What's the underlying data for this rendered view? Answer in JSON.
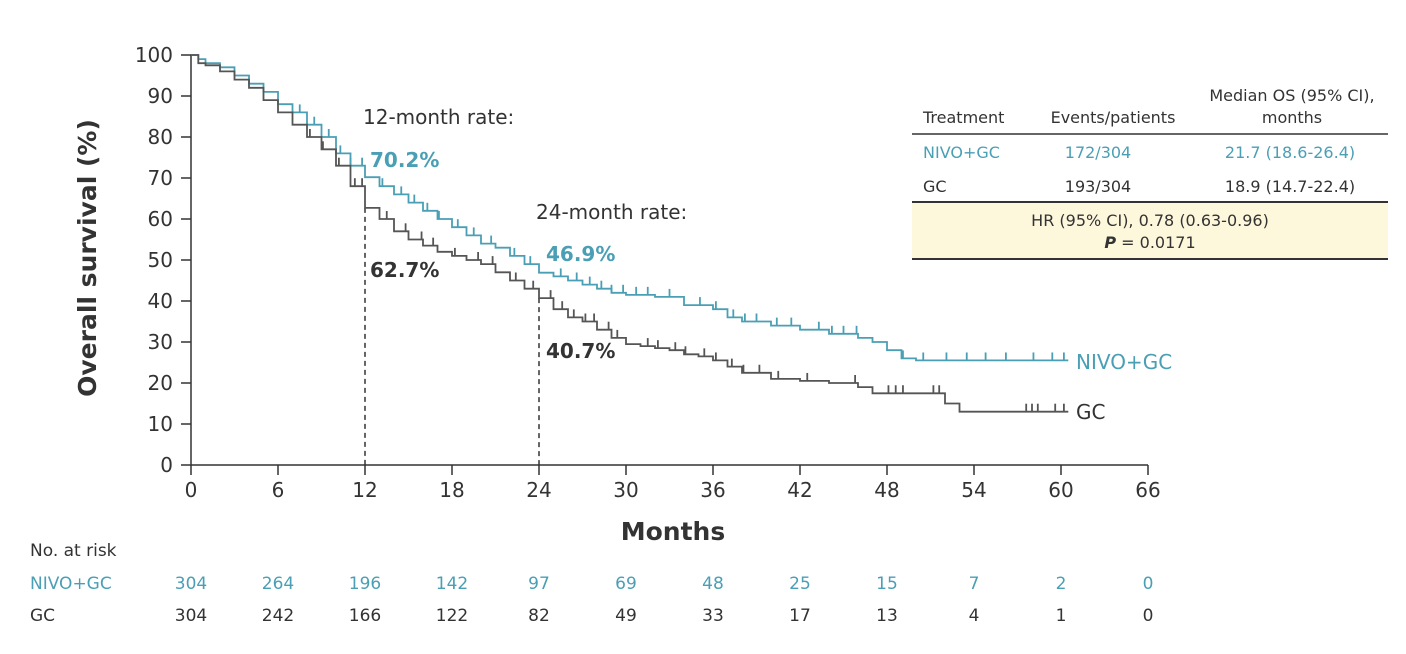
{
  "chart_data": {
    "type": "line",
    "title": "",
    "xlabel": "Months",
    "ylabel": "Overall survival (%)",
    "xlim": [
      0,
      66
    ],
    "ylim": [
      0,
      100
    ],
    "xticks": [
      0,
      6,
      12,
      18,
      24,
      30,
      36,
      42,
      48,
      54,
      60,
      66
    ],
    "yticks": [
      0,
      10,
      20,
      30,
      40,
      50,
      60,
      70,
      80,
      90,
      100
    ],
    "grid": false,
    "series": [
      {
        "name": "NIVO+GC",
        "color": "#4a9fb5",
        "points": [
          [
            0,
            100
          ],
          [
            0.5,
            99
          ],
          [
            1,
            98
          ],
          [
            2,
            97
          ],
          [
            3,
            95
          ],
          [
            4,
            93
          ],
          [
            5,
            91
          ],
          [
            6,
            88
          ],
          [
            7,
            86
          ],
          [
            8,
            83
          ],
          [
            9,
            80
          ],
          [
            10,
            76
          ],
          [
            11,
            73
          ],
          [
            12,
            70.2
          ],
          [
            13,
            68
          ],
          [
            14,
            66
          ],
          [
            15,
            64
          ],
          [
            16,
            62
          ],
          [
            17,
            60
          ],
          [
            18,
            58
          ],
          [
            19,
            56
          ],
          [
            20,
            54
          ],
          [
            21,
            53
          ],
          [
            22,
            51
          ],
          [
            23,
            49
          ],
          [
            24,
            46.9
          ],
          [
            25,
            46
          ],
          [
            26,
            45
          ],
          [
            27,
            44
          ],
          [
            28,
            43
          ],
          [
            29,
            42
          ],
          [
            30,
            41.5
          ],
          [
            32,
            41
          ],
          [
            34,
            39
          ],
          [
            36,
            38
          ],
          [
            37,
            36
          ],
          [
            38,
            35
          ],
          [
            40,
            34
          ],
          [
            42,
            33
          ],
          [
            44,
            32
          ],
          [
            46,
            31
          ],
          [
            47,
            30
          ],
          [
            48,
            28
          ],
          [
            49,
            26
          ],
          [
            50,
            25.5
          ],
          [
            55,
            25.5
          ],
          [
            60.5,
            25.5
          ]
        ],
        "censor": [
          7.5,
          8.5,
          9.5,
          10.3,
          11,
          11.8,
          13.2,
          14.5,
          15.4,
          16.3,
          17.1,
          18.4,
          19.5,
          20.7,
          22.3,
          23.4,
          25.5,
          26.6,
          27.5,
          28.3,
          29,
          29.8,
          30.7,
          31.5,
          33,
          35.1,
          36.2,
          37.4,
          38.2,
          39,
          40.4,
          41.4,
          43.3,
          44.2,
          45,
          45.9,
          49.1,
          50.5,
          52.1,
          53.5,
          54.8,
          56.2,
          58.1,
          59.4,
          60.2
        ]
      },
      {
        "name": "GC",
        "color": "#555555",
        "points": [
          [
            0,
            100
          ],
          [
            0.5,
            98
          ],
          [
            1,
            97.5
          ],
          [
            2,
            96
          ],
          [
            3,
            94
          ],
          [
            4,
            92
          ],
          [
            5,
            89
          ],
          [
            6,
            86
          ],
          [
            7,
            83
          ],
          [
            8,
            80
          ],
          [
            9,
            77
          ],
          [
            10,
            73
          ],
          [
            11,
            68
          ],
          [
            12,
            62.7
          ],
          [
            13,
            60
          ],
          [
            14,
            57
          ],
          [
            15,
            55
          ],
          [
            16,
            53.5
          ],
          [
            17,
            52
          ],
          [
            18,
            51
          ],
          [
            19,
            50
          ],
          [
            20,
            49
          ],
          [
            21,
            47
          ],
          [
            22,
            45
          ],
          [
            23,
            43
          ],
          [
            24,
            40.7
          ],
          [
            25,
            38
          ],
          [
            26,
            36
          ],
          [
            27,
            35
          ],
          [
            28,
            33
          ],
          [
            29,
            31
          ],
          [
            30,
            29.5
          ],
          [
            31,
            29
          ],
          [
            32,
            28.5
          ],
          [
            33,
            28
          ],
          [
            34,
            27
          ],
          [
            35,
            26.5
          ],
          [
            36,
            25.5
          ],
          [
            37,
            24
          ],
          [
            38,
            22.5
          ],
          [
            40,
            21
          ],
          [
            42,
            20.5
          ],
          [
            44,
            20
          ],
          [
            46,
            19
          ],
          [
            47,
            17.5
          ],
          [
            48,
            17.5
          ],
          [
            50,
            17.5
          ],
          [
            51.5,
            17.5
          ],
          [
            52,
            15
          ],
          [
            53,
            13
          ],
          [
            55,
            13
          ],
          [
            60.5,
            13
          ]
        ],
        "censor": [
          8.2,
          9.1,
          10.2,
          11.3,
          11.8,
          13.5,
          14.8,
          15.9,
          16.7,
          18.2,
          19.8,
          20.8,
          22.4,
          23.6,
          24.8,
          25.6,
          26.4,
          27.2,
          27.8,
          28.8,
          29.4,
          31.5,
          32.2,
          33.4,
          34.1,
          35.4,
          36.2,
          37.3,
          38.1,
          39.2,
          40.5,
          42.5,
          45.8,
          48.1,
          48.6,
          49.1,
          51.2,
          51.6,
          57.6,
          58,
          58.4,
          59.6,
          60.2
        ]
      }
    ],
    "reference_lines": [
      {
        "x": 12,
        "y": 62.7
      },
      {
        "x": 24,
        "y": 40.7
      }
    ]
  },
  "annotations": {
    "rate12_title": "12-month rate:",
    "rate12_nivo": "70.2%",
    "rate12_gc": "62.7%",
    "rate24_title": "24-month rate:",
    "rate24_nivo": "46.9%",
    "rate24_gc": "40.7%"
  },
  "curve_labels": {
    "nivo": "NIVO+GC",
    "gc": "GC"
  },
  "summary_table": {
    "headers": {
      "treatment": "Treatment",
      "events": "Events/patients",
      "median_line1": "Median OS (95% CI),",
      "median_line2": "months"
    },
    "rows": [
      {
        "treatment": "NIVO+GC",
        "events": "172/304",
        "median": "21.7 (18.6-26.4)"
      },
      {
        "treatment": "GC",
        "events": "193/304",
        "median": "18.9 (14.7-22.4)"
      }
    ],
    "hr_line": "HR (95% CI), 0.78 (0.63-0.96)",
    "p_label": "P",
    "p_value": " = 0.0171"
  },
  "at_risk": {
    "title": "No. at risk",
    "rows": [
      {
        "label": "NIVO+GC",
        "values": [
          "304",
          "264",
          "196",
          "142",
          "97",
          "69",
          "48",
          "25",
          "15",
          "7",
          "2",
          "0"
        ]
      },
      {
        "label": "GC",
        "values": [
          "304",
          "242",
          "166",
          "122",
          "82",
          "49",
          "33",
          "17",
          "13",
          "4",
          "1",
          "0"
        ]
      }
    ]
  },
  "colors": {
    "nivo": "#4a9fb5",
    "gc": "#555555",
    "text": "#333333",
    "hr_fill": "#fdf7dc"
  }
}
